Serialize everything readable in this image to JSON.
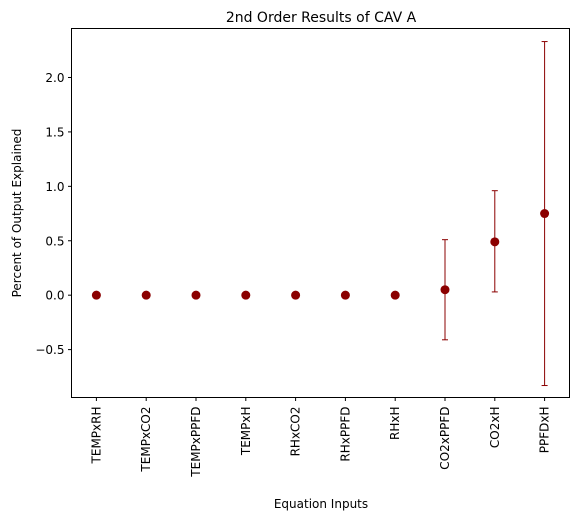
{
  "chart_data": {
    "type": "scatter",
    "title": "2nd Order Results of CAV A",
    "xlabel": "Equation Inputs",
    "ylabel": "Percent of Output Explained",
    "categories": [
      "TEMPxRH",
      "TEMPxCO2",
      "TEMPxPPFD",
      "TEMPxH",
      "RHxCO2",
      "RHxPPFD",
      "RHxH",
      "CO2xPPFD",
      "CO2xH",
      "PPFDxH"
    ],
    "values": [
      0.0,
      0.0,
      0.0,
      0.0,
      0.0,
      0.0,
      0.0,
      0.05,
      0.49,
      0.75
    ],
    "error_low": [
      0.0,
      0.0,
      0.0,
      0.0,
      0.0,
      0.0,
      0.0,
      -0.41,
      0.03,
      -0.83
    ],
    "error_high": [
      0.0,
      0.0,
      0.0,
      0.0,
      0.0,
      0.0,
      0.0,
      0.51,
      0.96,
      2.33
    ],
    "ylim": [
      -0.94,
      2.45
    ],
    "yticks": [
      -0.5,
      0.0,
      0.5,
      1.0,
      1.5,
      2.0
    ],
    "ytick_labels": [
      "−0.5",
      "0.0",
      "0.5",
      "1.0",
      "1.5",
      "2.0"
    ],
    "grid": false,
    "marker_color": "#8b0000"
  }
}
